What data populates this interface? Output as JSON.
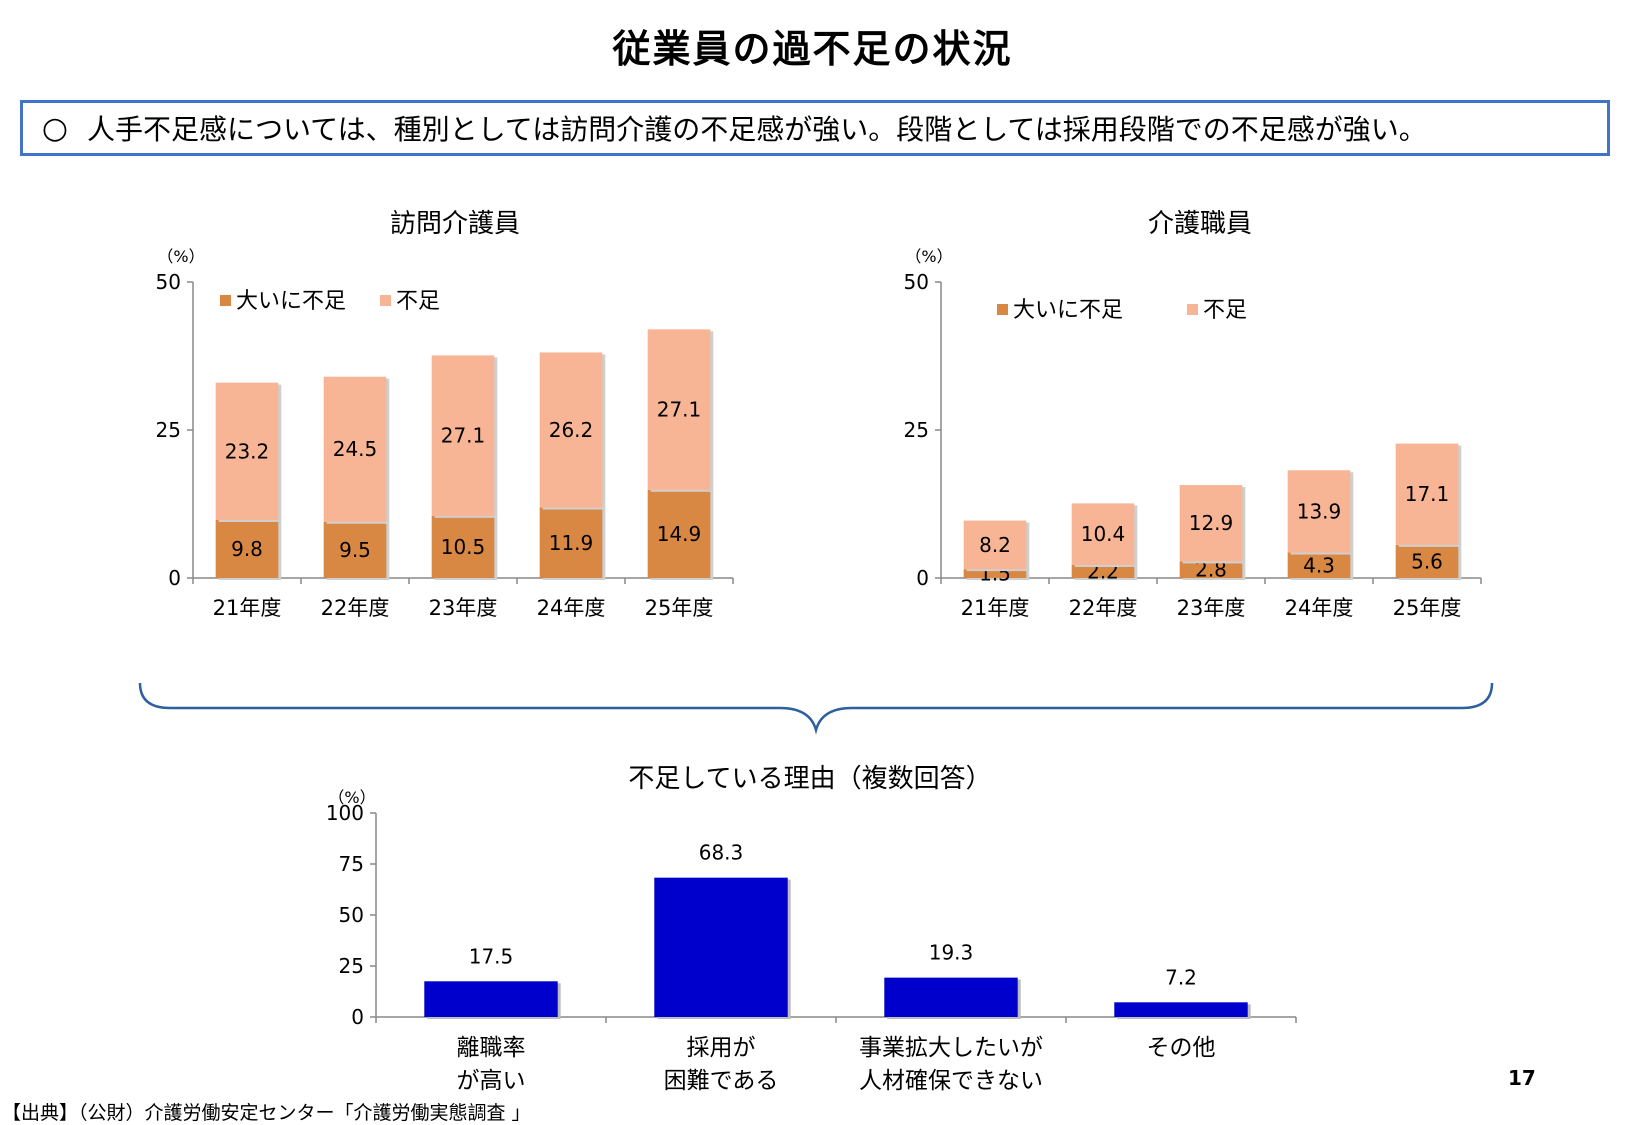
{
  "title": "従業員の過不足の状況",
  "summary": {
    "marker": "○",
    "text": "人手不足感については、種別としては訪問介護の不足感が強い。段階としては採用段階での不足感が強い。"
  },
  "colors": {
    "severe": "#d98844",
    "shortage": "#f7b595",
    "reason_bar": "#0000cc",
    "box_border": "#4472c4",
    "brace": "#2e5f9e"
  },
  "chart_data": [
    {
      "type": "bar",
      "stacked": true,
      "title": "訪問介護員",
      "unit": "（%）",
      "categories": [
        "21年度",
        "22年度",
        "23年度",
        "24年度",
        "25年度"
      ],
      "series": [
        {
          "name": "大いに不足",
          "values": [
            9.8,
            9.5,
            10.5,
            11.9,
            14.9
          ]
        },
        {
          "name": "不足",
          "values": [
            23.2,
            24.5,
            27.1,
            26.2,
            27.1
          ]
        }
      ],
      "ylim": [
        0,
        50
      ],
      "yticks": [
        "0",
        "25",
        "50"
      ],
      "legend": "top-left"
    },
    {
      "type": "bar",
      "stacked": true,
      "title": "介護職員",
      "unit": "（%）",
      "categories": [
        "21年度",
        "22年度",
        "23年度",
        "24年度",
        "25年度"
      ],
      "series": [
        {
          "name": "大いに不足",
          "values": [
            1.5,
            2.2,
            2.8,
            4.3,
            5.6
          ]
        },
        {
          "name": "不足",
          "values": [
            8.2,
            10.4,
            12.9,
            13.9,
            17.1
          ]
        }
      ],
      "ylim": [
        0,
        50
      ],
      "yticks": [
        "0",
        "25",
        "50"
      ],
      "legend": "top-left"
    },
    {
      "type": "bar",
      "title": "不足している理由（複数回答）",
      "unit": "（%）",
      "categories": [
        [
          "離職率",
          "が高い"
        ],
        [
          "採用が",
          "困難である"
        ],
        [
          "事業拡大したいが",
          "人材確保できない"
        ],
        [
          "その他"
        ]
      ],
      "values": [
        17.5,
        68.3,
        19.3,
        7.2
      ],
      "ylim": [
        0,
        100
      ],
      "yticks": [
        "0",
        "25",
        "50",
        "75",
        "100"
      ]
    }
  ],
  "footer": {
    "source": "【出典】（公財）介護労働安定センター「介護労働実態調査 」",
    "page_number": "17"
  }
}
